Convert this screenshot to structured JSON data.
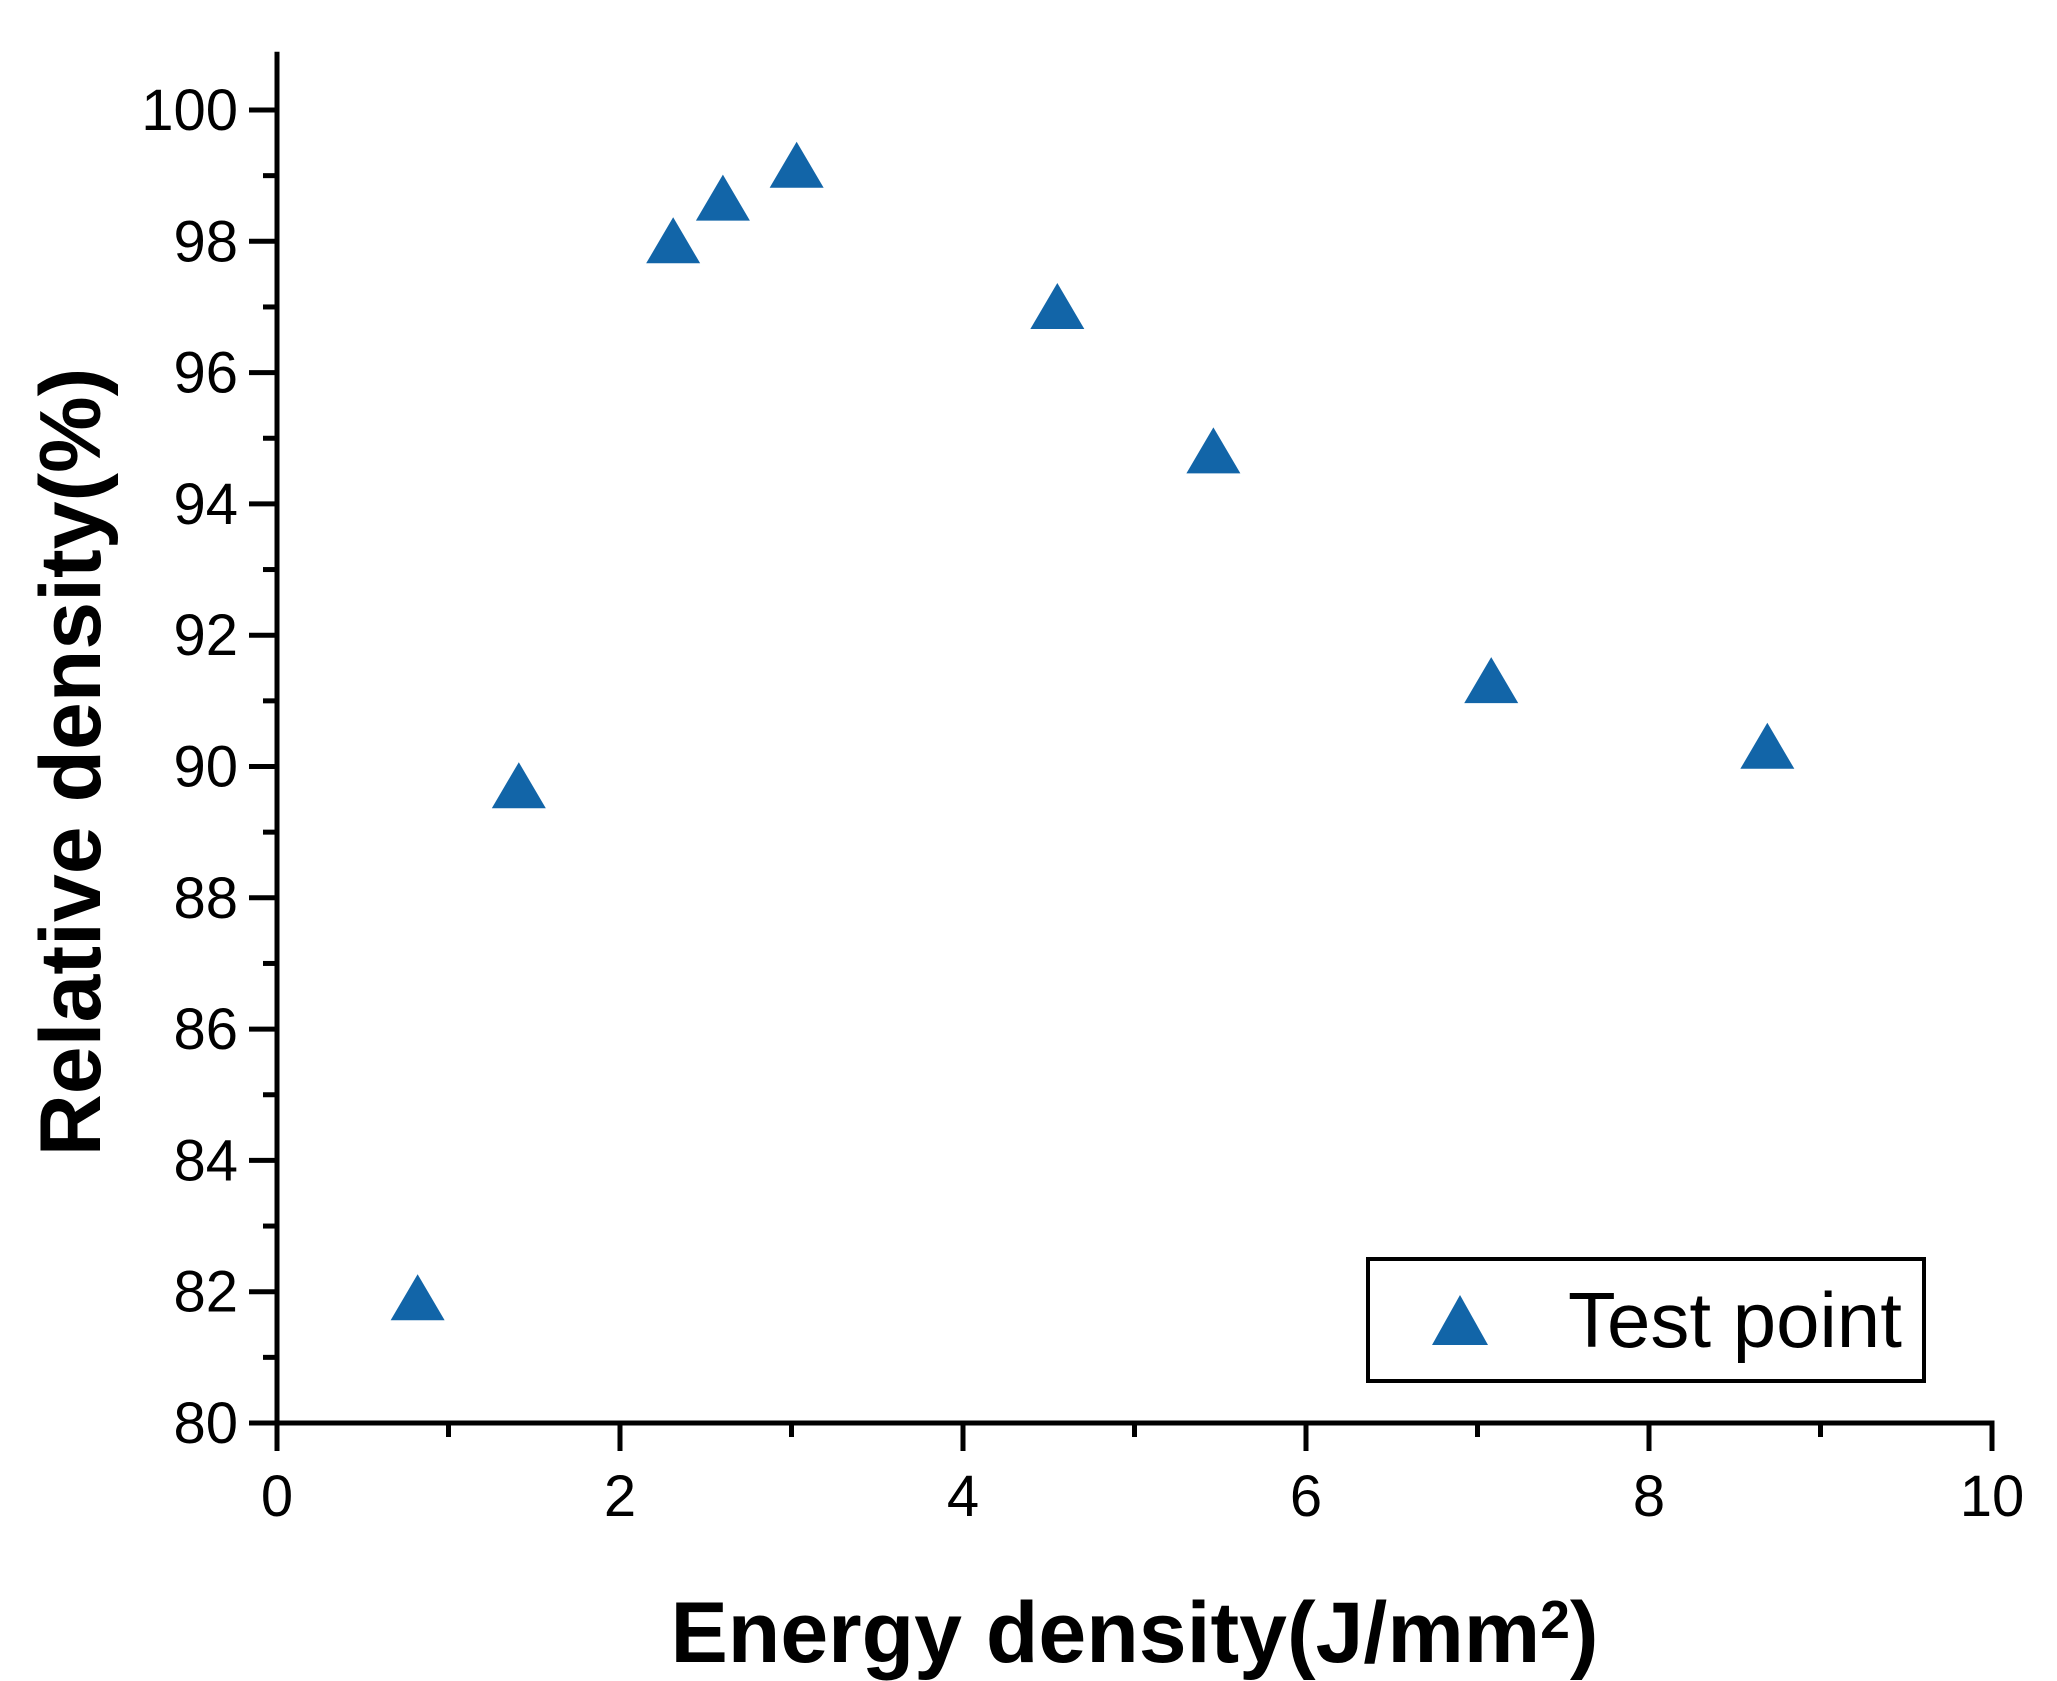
{
  "figure": {
    "background_color": "#ffffff",
    "axis_color": "#000000",
    "text_color": "#000000"
  },
  "chart_data": {
    "type": "scatter",
    "title": "",
    "xlabel": "Energy density(J/mm²)",
    "xlabel_main": "Energy density(J/mm",
    "xlabel_sup": "2",
    "xlabel_close": ")",
    "ylabel": "Relative density(%)",
    "xlim": [
      0,
      10
    ],
    "ylim": [
      80,
      101
    ],
    "grid": false,
    "x_major_ticks": [
      0,
      2,
      4,
      6,
      8,
      10
    ],
    "x_minor_ticks": [
      1,
      3,
      5,
      7,
      9
    ],
    "x_tick_labels": [
      "0",
      "2",
      "4",
      "6",
      "8",
      "10"
    ],
    "y_major_ticks": [
      80,
      82,
      84,
      86,
      88,
      90,
      92,
      94,
      96,
      98,
      100
    ],
    "y_minor_ticks": [
      81,
      83,
      85,
      87,
      89,
      91,
      93,
      95,
      97,
      99
    ],
    "y_tick_labels": [
      "80",
      "82",
      "84",
      "86",
      "88",
      "90",
      "92",
      "94",
      "96",
      "98",
      "100"
    ],
    "series": [
      {
        "name": "Test point",
        "marker": "triangle-up",
        "color": "#1265A8",
        "points": [
          [
            0.82,
            81.9
          ],
          [
            1.41,
            89.7
          ],
          [
            2.31,
            98.0
          ],
          [
            2.6,
            98.65
          ],
          [
            3.03,
            99.15
          ],
          [
            4.55,
            97.0
          ],
          [
            5.46,
            94.8
          ],
          [
            7.08,
            91.3
          ],
          [
            8.69,
            90.3
          ]
        ]
      }
    ],
    "legend": {
      "position": "bottom-right",
      "border_color": "#000000",
      "entries": [
        "Test point"
      ]
    }
  }
}
